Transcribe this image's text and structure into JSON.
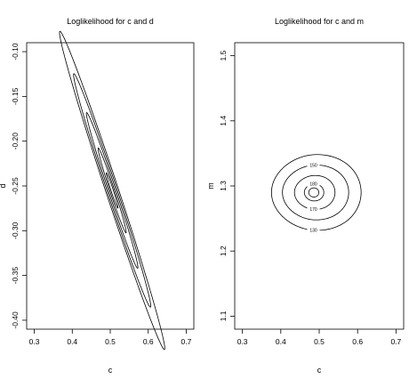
{
  "chart_data": [
    {
      "type": "contour",
      "title": "Loglikelihood for c and d",
      "xlabel": "c",
      "ylabel": "d",
      "xlim": [
        0.28,
        0.72
      ],
      "ylim": [
        -0.41,
        -0.09
      ],
      "xticks": [
        0.3,
        0.4,
        0.5,
        0.6,
        0.7
      ],
      "xtick_labels": [
        "0.3",
        "0.4",
        "0.5",
        "0.6",
        "0.7"
      ],
      "yticks": [
        -0.1,
        -0.15,
        -0.2,
        -0.25,
        -0.3,
        -0.35,
        -0.4
      ],
      "ytick_labels": [
        "-0.10",
        "-0.15",
        "-0.20",
        "-0.25",
        "-0.30",
        "-0.35",
        "-0.40"
      ],
      "center": {
        "x": 0.505,
        "y": -0.255
      },
      "contours": [
        {
          "level": "",
          "a": 0.225,
          "b": 0.014
        },
        {
          "level": "",
          "a": 0.165,
          "b": 0.011
        },
        {
          "level": "",
          "a": 0.11,
          "b": 0.008
        },
        {
          "level": "",
          "a": 0.06,
          "b": 0.005
        },
        {
          "level": "",
          "a": 0.025,
          "b": 0.0025
        }
      ]
    },
    {
      "type": "contour",
      "title": "Loglikelihood for c and m",
      "xlabel": "c",
      "ylabel": "m",
      "xlim": [
        0.28,
        0.72
      ],
      "ylim": [
        1.08,
        1.52
      ],
      "xticks": [
        0.3,
        0.4,
        0.5,
        0.6,
        0.7
      ],
      "xtick_labels": [
        "0.3",
        "0.4",
        "0.5",
        "0.6",
        "0.7"
      ],
      "yticks": [
        1.1,
        1.2,
        1.3,
        1.4,
        1.5
      ],
      "ytick_labels": [
        "1.1",
        "1.2",
        "1.3",
        "1.4",
        "1.5"
      ],
      "center": {
        "x": 0.485,
        "y": 1.29
      },
      "contours": [
        {
          "level": "130",
          "rx": 0.115,
          "ry": 0.058
        },
        {
          "level": "150",
          "rx": 0.085,
          "ry": 0.042
        },
        {
          "level": "170",
          "rx": 0.052,
          "ry": 0.026
        },
        {
          "level": "180",
          "rx": 0.025,
          "ry": 0.013
        },
        {
          "level": "",
          "rx": 0.013,
          "ry": 0.007
        }
      ]
    }
  ]
}
